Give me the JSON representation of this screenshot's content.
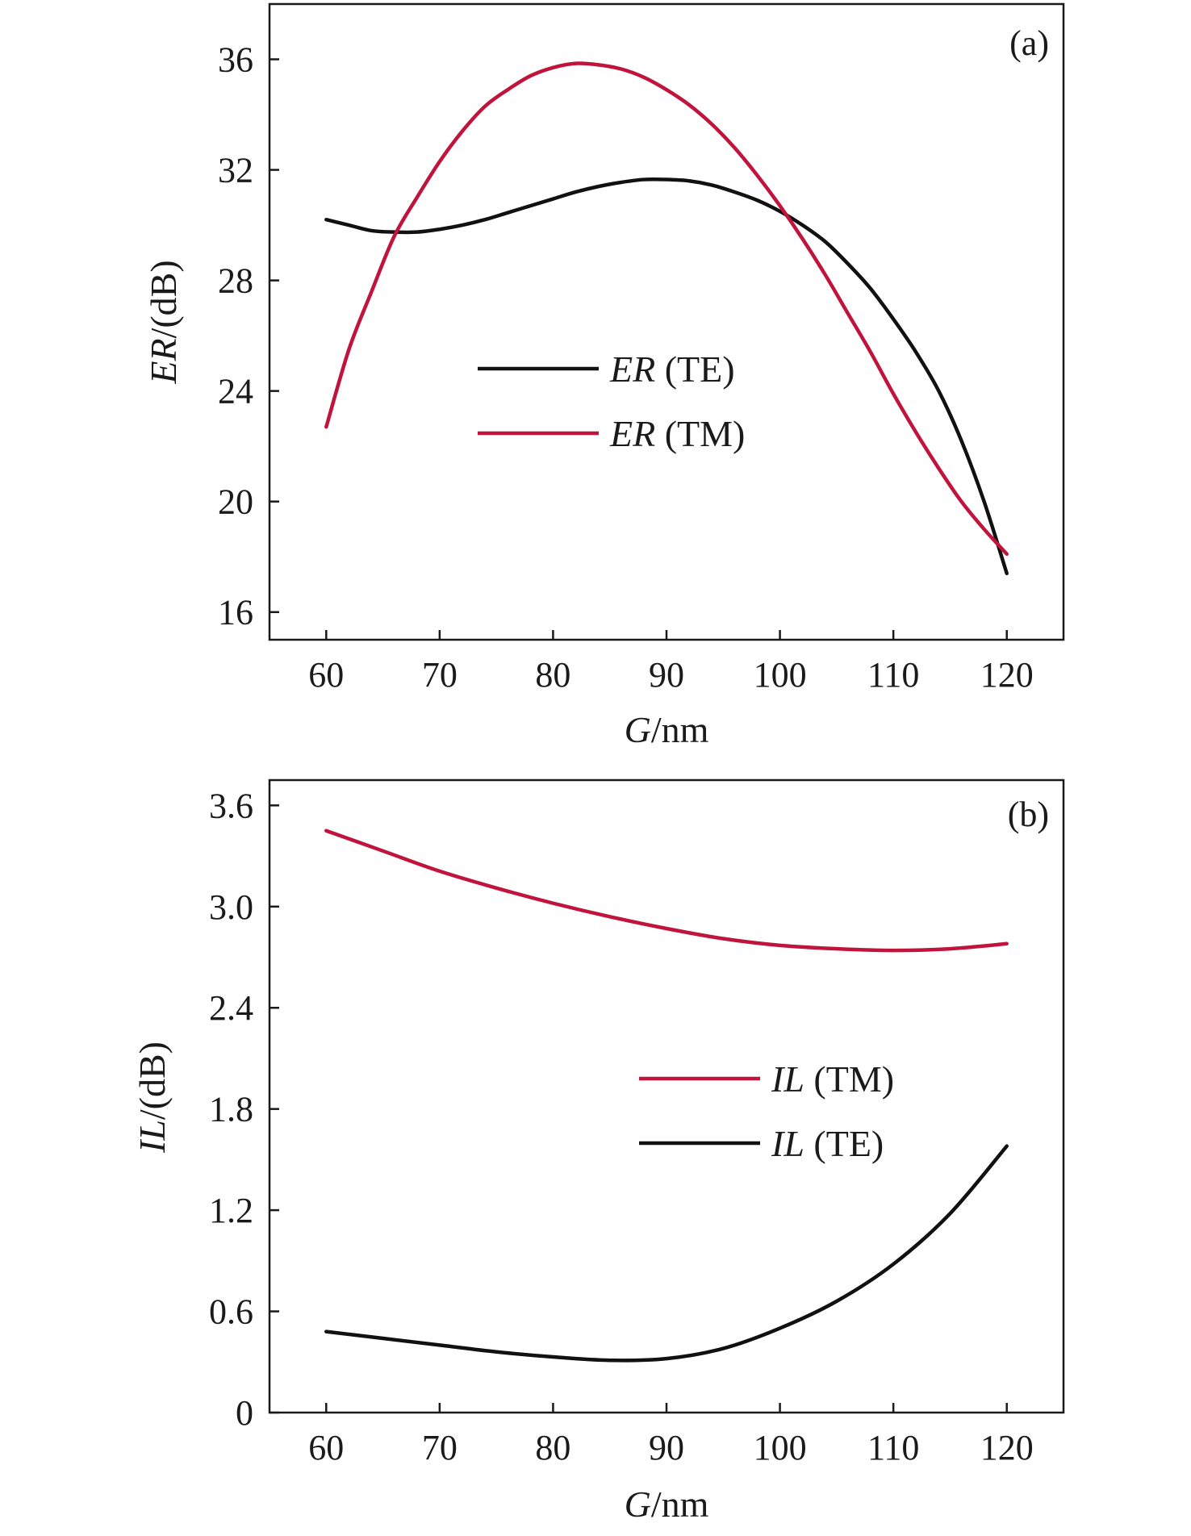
{
  "chart_data": [
    {
      "type": "line",
      "panel_label": "(a)",
      "xlabel_var": "G",
      "xlabel_unit": "/nm",
      "ylabel_var": "ER",
      "ylabel_unit": "/(dB)",
      "xlim": [
        55,
        125
      ],
      "ylim": [
        15,
        38
      ],
      "xticks": [
        60,
        70,
        80,
        90,
        100,
        110,
        120
      ],
      "yticks": [
        16,
        20,
        24,
        28,
        32,
        36
      ],
      "legend_placement": "center",
      "series": [
        {
          "name_var": "ER",
          "name_mode": " (TE)",
          "color": "#111111",
          "x": [
            60,
            62,
            64,
            66,
            68,
            70,
            72,
            74,
            76,
            78,
            80,
            82,
            84,
            86,
            88,
            90,
            92,
            94,
            96,
            98,
            100,
            102,
            104,
            106,
            108,
            110,
            112,
            114,
            116,
            118,
            120
          ],
          "y": [
            30.2,
            30.0,
            29.8,
            29.75,
            29.75,
            29.85,
            30.0,
            30.2,
            30.45,
            30.7,
            30.95,
            31.2,
            31.4,
            31.55,
            31.65,
            31.65,
            31.6,
            31.45,
            31.2,
            30.9,
            30.5,
            30.0,
            29.4,
            28.6,
            27.7,
            26.6,
            25.4,
            24.0,
            22.2,
            20.0,
            17.4
          ]
        },
        {
          "name_var": "ER",
          "name_mode": " (TM)",
          "color": "#c0143c",
          "x": [
            60,
            62,
            64,
            66,
            68,
            70,
            72,
            74,
            76,
            78,
            80,
            82,
            84,
            86,
            88,
            90,
            92,
            94,
            96,
            98,
            100,
            102,
            104,
            106,
            108,
            110,
            112,
            114,
            116,
            118,
            120
          ],
          "y": [
            22.7,
            25.5,
            27.6,
            29.6,
            31.0,
            32.3,
            33.4,
            34.3,
            34.9,
            35.4,
            35.7,
            35.85,
            35.8,
            35.65,
            35.35,
            34.9,
            34.35,
            33.65,
            32.8,
            31.8,
            30.7,
            29.5,
            28.2,
            26.8,
            25.4,
            23.9,
            22.5,
            21.2,
            20.0,
            19.0,
            18.1
          ]
        }
      ]
    },
    {
      "type": "line",
      "panel_label": "(b)",
      "xlabel_var": "G",
      "xlabel_unit": "/nm",
      "ylabel_var": "IL",
      "ylabel_unit": "/(dB)",
      "xlim": [
        55,
        125
      ],
      "ylim": [
        0,
        3.75
      ],
      "xticks": [
        60,
        70,
        80,
        90,
        100,
        110,
        120
      ],
      "yticks": [
        0,
        0.6,
        1.2,
        1.8,
        2.4,
        3.0,
        3.6
      ],
      "ytick_labels": [
        "0",
        "0.6",
        "1.2",
        "1.8",
        "2.4",
        "3.0",
        "3.6"
      ],
      "legend_placement": "center-right",
      "series": [
        {
          "name_var": "IL",
          "name_mode": " (TM)",
          "color": "#c0143c",
          "x": [
            60,
            65,
            70,
            75,
            80,
            85,
            90,
            95,
            100,
            105,
            110,
            115,
            120
          ],
          "y": [
            3.45,
            3.33,
            3.21,
            3.11,
            3.02,
            2.94,
            2.87,
            2.81,
            2.77,
            2.75,
            2.74,
            2.75,
            2.78
          ]
        },
        {
          "name_var": "IL",
          "name_mode": " (TE)",
          "color": "#111111",
          "x": [
            60,
            65,
            70,
            75,
            80,
            85,
            90,
            95,
            100,
            105,
            110,
            115,
            120
          ],
          "y": [
            0.48,
            0.44,
            0.4,
            0.36,
            0.33,
            0.31,
            0.32,
            0.38,
            0.5,
            0.66,
            0.88,
            1.18,
            1.58
          ]
        }
      ]
    }
  ]
}
